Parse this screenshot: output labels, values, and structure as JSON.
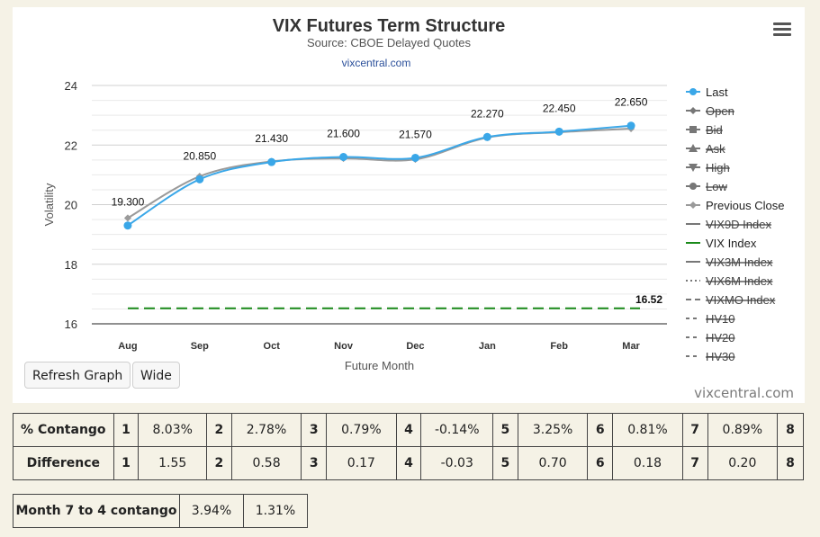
{
  "header": {
    "title": "VIX Futures Term Structure",
    "subtitle": "Source: CBOE Delayed Quotes",
    "link": "vixcentral.com"
  },
  "credit": "vixcentral.com",
  "buttons": {
    "refresh": "Refresh Graph",
    "wide": "Wide"
  },
  "chart_data": {
    "type": "line",
    "title": "VIX Futures Term Structure",
    "subtitle": "Source: CBOE Delayed Quotes",
    "xlabel": "Future Month",
    "ylabel": "Volatility",
    "categories": [
      "Aug",
      "Sep",
      "Oct",
      "Nov",
      "Dec",
      "Jan",
      "Feb",
      "Mar"
    ],
    "ylim": [
      16,
      24
    ],
    "yticks": [
      16,
      18,
      20,
      22,
      24
    ],
    "grid": true,
    "legend_position": "right",
    "series": [
      {
        "name": "Last",
        "color": "#3aa7e8",
        "visible": true,
        "marker": "circle",
        "values": [
          19.3,
          20.85,
          21.43,
          21.6,
          21.57,
          22.27,
          22.45,
          22.65
        ],
        "labels": [
          "19.300",
          "20.850",
          "21.430",
          "21.600",
          "21.570",
          "22.270",
          "22.450",
          "22.650"
        ]
      },
      {
        "name": "Previous Close",
        "color": "#9a9a9a",
        "visible": true,
        "marker": "diamond",
        "values": [
          19.55,
          20.95,
          21.45,
          21.55,
          21.52,
          22.25,
          22.43,
          22.55
        ]
      },
      {
        "name": "VIX Index",
        "color": "#1a8a1a",
        "visible": true,
        "dash": true,
        "constant": 16.52,
        "label": "16.52"
      }
    ],
    "legend": [
      {
        "name": "Last",
        "symbol": "circle",
        "color": "#3aa7e8",
        "hidden": false
      },
      {
        "name": "Open",
        "symbol": "diamond",
        "color": "#555555",
        "hidden": true
      },
      {
        "name": "Bid",
        "symbol": "square",
        "color": "#555555",
        "hidden": true
      },
      {
        "name": "Ask",
        "symbol": "triangle",
        "color": "#555555",
        "hidden": true
      },
      {
        "name": "High",
        "symbol": "triangle-down",
        "color": "#555555",
        "hidden": true
      },
      {
        "name": "Low",
        "symbol": "circle",
        "color": "#555555",
        "hidden": true
      },
      {
        "name": "Previous Close",
        "symbol": "diamond",
        "color": "#9a9a9a",
        "hidden": false
      },
      {
        "name": "VIX9D Index",
        "symbol": "line",
        "color": "#777777",
        "hidden": true
      },
      {
        "name": "VIX Index",
        "symbol": "line",
        "color": "#1a8a1a",
        "hidden": false
      },
      {
        "name": "VIX3M Index",
        "symbol": "line",
        "color": "#777777",
        "hidden": true
      },
      {
        "name": "VIX6M Index",
        "symbol": "dotted",
        "color": "#777777",
        "hidden": true
      },
      {
        "name": "VIXMO Index",
        "symbol": "dashed",
        "color": "#777777",
        "hidden": true
      },
      {
        "name": "HV10",
        "symbol": "dashdot",
        "color": "#777777",
        "hidden": true
      },
      {
        "name": "HV20",
        "symbol": "dashdot",
        "color": "#777777",
        "hidden": true
      },
      {
        "name": "HV30",
        "symbol": "dashdot",
        "color": "#777777",
        "hidden": true
      }
    ]
  },
  "contango_table": {
    "rows": [
      {
        "label": "% Contango",
        "cells": [
          [
            "1",
            "8.03%"
          ],
          [
            "2",
            "2.78%"
          ],
          [
            "3",
            "0.79%"
          ],
          [
            "4",
            "-0.14%"
          ],
          [
            "5",
            "3.25%"
          ],
          [
            "6",
            "0.81%"
          ],
          [
            "7",
            "0.89%"
          ],
          [
            "8",
            ""
          ]
        ]
      },
      {
        "label": "Difference",
        "cells": [
          [
            "1",
            "1.55"
          ],
          [
            "2",
            "0.58"
          ],
          [
            "3",
            "0.17"
          ],
          [
            "4",
            "-0.03"
          ],
          [
            "5",
            "0.70"
          ],
          [
            "6",
            "0.18"
          ],
          [
            "7",
            "0.20"
          ],
          [
            "8",
            ""
          ]
        ]
      }
    ]
  },
  "month_table": {
    "label": "Month 7 to 4 contango",
    "values": [
      "3.94%",
      "1.31%"
    ]
  }
}
